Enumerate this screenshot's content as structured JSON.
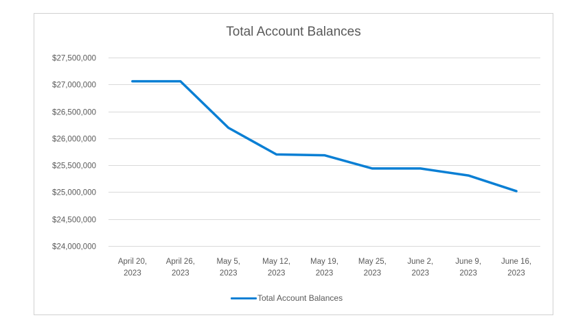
{
  "chart": {
    "title": "Total Account Balances",
    "legend_label": "Total Account Balances",
    "line_color": "#0a7fd4",
    "grid_color": "#d9d9d9",
    "text_color": "#595959"
  },
  "chart_data": {
    "type": "line",
    "title": "Total Account Balances",
    "xlabel": "",
    "ylabel": "",
    "categories": [
      [
        "April 20,",
        "2023"
      ],
      [
        "April 26,",
        "2023"
      ],
      [
        "May 5,",
        "2023"
      ],
      [
        "May 12,",
        "2023"
      ],
      [
        "May 19,",
        "2023"
      ],
      [
        "May 25,",
        "2023"
      ],
      [
        "June 2,",
        "2023"
      ],
      [
        "June 9,",
        "2023"
      ],
      [
        "June 16,",
        "2023"
      ]
    ],
    "series": [
      {
        "name": "Total Account Balances",
        "values": [
          27060000,
          27060000,
          26195000,
          25700000,
          25685000,
          25440000,
          25440000,
          25310000,
          25020000
        ]
      }
    ],
    "ylim": [
      24000000,
      27500000
    ],
    "yticks": [
      24000000,
      24500000,
      25000000,
      25500000,
      26000000,
      26500000,
      27000000,
      27500000
    ],
    "ytick_labels": [
      "$24,000,000",
      "$24,500,000",
      "$25,000,000",
      "$25,500,000",
      "$26,000,000",
      "$26,500,000",
      "$27,000,000",
      "$27,500,000"
    ],
    "grid": true,
    "legend_position": "bottom"
  }
}
